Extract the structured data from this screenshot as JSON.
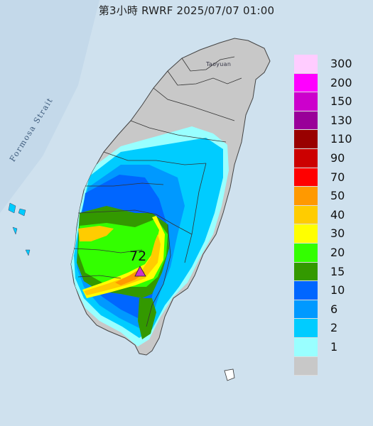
{
  "header": {
    "title": "第3小時  RWRF 2025/07/07 01:00"
  },
  "map": {
    "strait_label": "Formosa Strait",
    "city_label": "Taoyuan",
    "max_value": "72",
    "max_marker_color": "#cc33cc"
  },
  "legend": [
    {
      "label": "300",
      "color": "#ffccff"
    },
    {
      "label": "200",
      "color": "#ff00ff"
    },
    {
      "label": "150",
      "color": "#cc00cc"
    },
    {
      "label": "130",
      "color": "#990099"
    },
    {
      "label": "110",
      "color": "#990000"
    },
    {
      "label": "90",
      "color": "#cc0000"
    },
    {
      "label": "70",
      "color": "#ff0000"
    },
    {
      "label": "50",
      "color": "#ff9900"
    },
    {
      "label": "40",
      "color": "#ffcc00"
    },
    {
      "label": "30",
      "color": "#ffff00"
    },
    {
      "label": "20",
      "color": "#33ff00"
    },
    {
      "label": "15",
      "color": "#339900"
    },
    {
      "label": "10",
      "color": "#0066ff"
    },
    {
      "label": "6",
      "color": "#0099ff"
    },
    {
      "label": "2",
      "color": "#00ccff"
    },
    {
      "label": "1",
      "color": "#99ffff"
    },
    {
      "label": "",
      "color": "#c8c8c8"
    }
  ]
}
